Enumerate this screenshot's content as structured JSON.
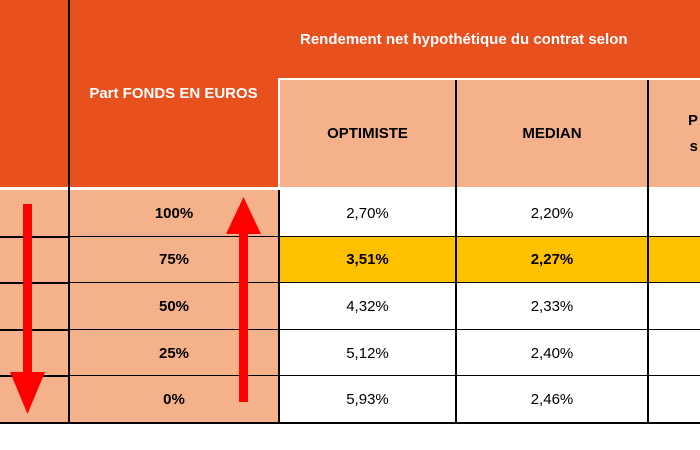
{
  "header": {
    "part_label": "Part FONDS EN EUROS",
    "scenario_header": "Rendement net hypothétique du contrat selon",
    "columns": [
      "OPTIMISTE",
      "MEDIAN",
      "P",
      "s"
    ]
  },
  "rows": [
    {
      "part": "100%",
      "optimiste": "2,70%",
      "median": "2,20%",
      "highlight": false
    },
    {
      "part": "75%",
      "optimiste": "3,51%",
      "median": "2,27%",
      "highlight": true
    },
    {
      "part": "50%",
      "optimiste": "4,32%",
      "median": "2,33%",
      "highlight": false
    },
    {
      "part": "25%",
      "optimiste": "5,12%",
      "median": "2,40%",
      "highlight": false
    },
    {
      "part": "0%",
      "optimiste": "5,93%",
      "median": "2,46%",
      "highlight": false
    }
  ],
  "colors": {
    "header_orange": "#e8501e",
    "light_orange": "#f4b18a",
    "highlight_yellow": "#ffc000",
    "arrow_red": "#ff0000"
  },
  "icons": {
    "down_arrow": "arrow-down-icon",
    "up_arrow": "arrow-up-icon"
  }
}
